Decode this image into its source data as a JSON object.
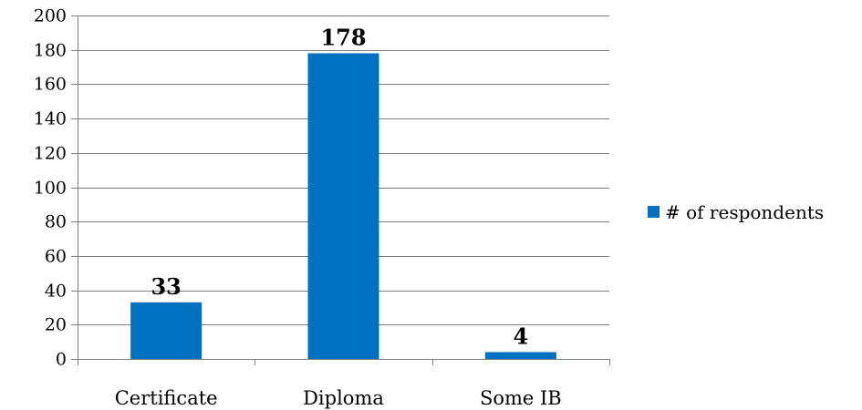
{
  "chart_data": {
    "type": "bar",
    "title": "",
    "xlabel": "",
    "ylabel": "",
    "categories": [
      "Certificate",
      "Diploma",
      "Some IB"
    ],
    "series": [
      {
        "name": "# of respondents",
        "values": [
          33,
          178,
          4
        ],
        "data_labels": [
          "33",
          "178",
          "4"
        ]
      }
    ],
    "ylim": [
      0,
      200
    ],
    "yticks": [
      "0",
      "20",
      "40",
      "60",
      "80",
      "100",
      "120",
      "140",
      "160",
      "180",
      "200"
    ],
    "grid": true,
    "legend": "right",
    "bar_color": "#0070C0",
    "gridline_color": "#808080"
  }
}
